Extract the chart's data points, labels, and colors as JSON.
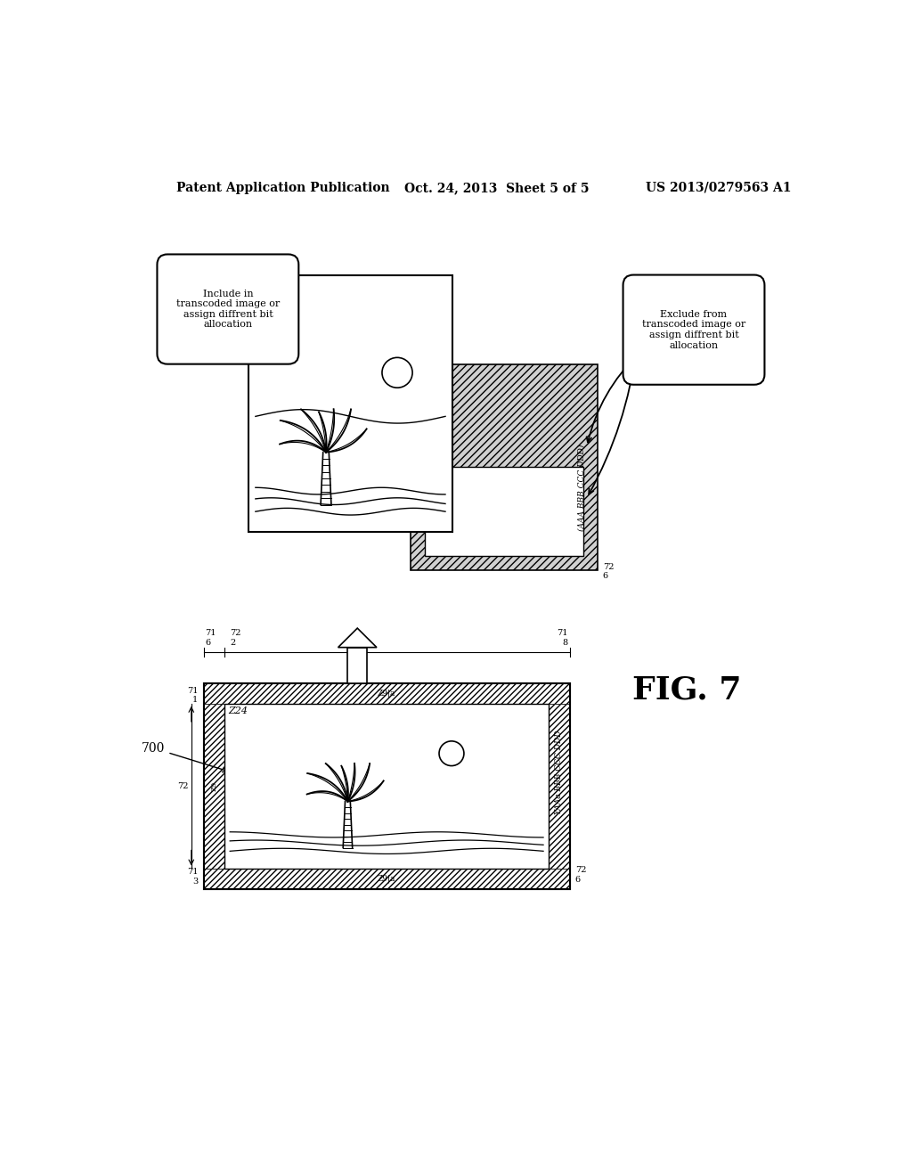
{
  "header_left": "Patent Application Publication",
  "header_center": "Oct. 24, 2013  Sheet 5 of 5",
  "header_right": "US 2013/0279563 A1",
  "fig_label": "FIG. 7",
  "bubble_left_text": "Include in\ntranscoded image or\nassign diffrent bit\nallocation",
  "bubble_right_text": "Exclude from\ntranscoded image or\nassign diffrent bit\nallocation",
  "bg_color": "#ffffff"
}
